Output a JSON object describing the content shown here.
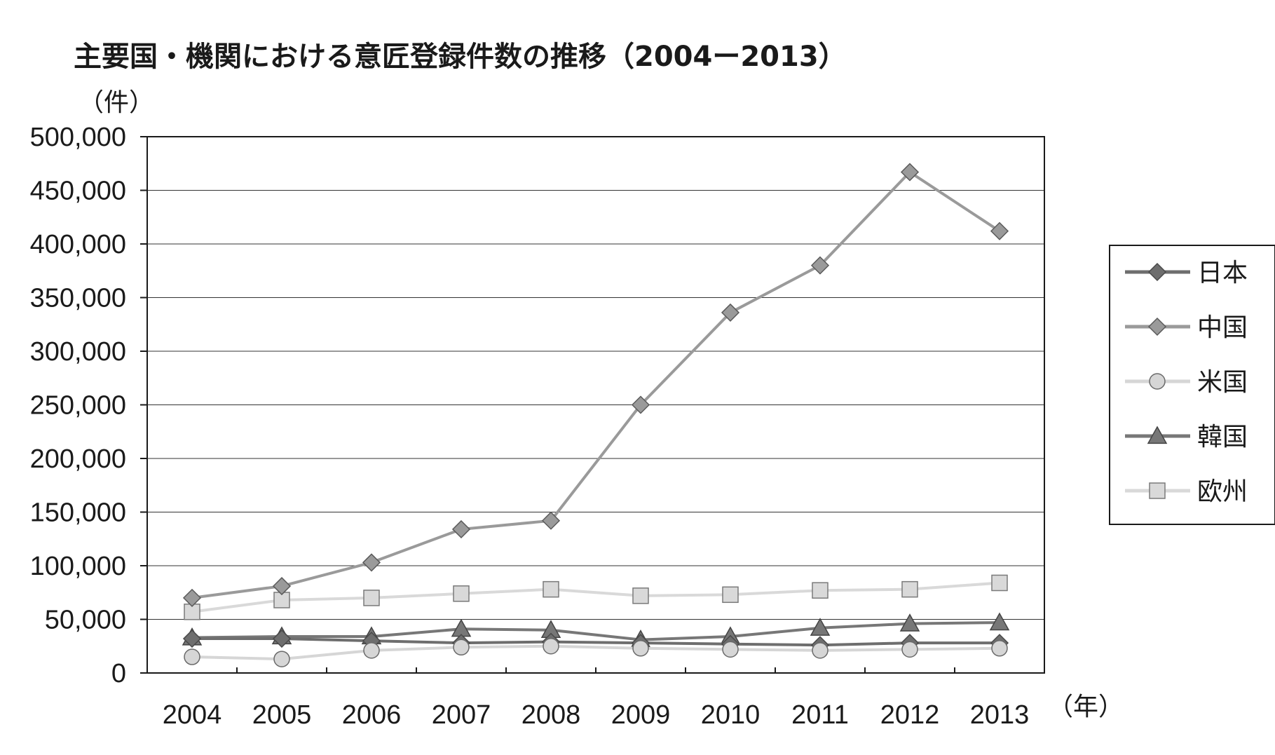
{
  "chart_data": {
    "type": "line",
    "title": "主要国・機関における意匠登録件数の推移（2004ー2013）",
    "ylabel": "（件）",
    "xlabel": "（年）",
    "ylim": [
      0,
      500000
    ],
    "yticks": [
      "500,000",
      "450,000",
      "400,000",
      "350,000",
      "300,000",
      "250,000",
      "200,000",
      "150,000",
      "100,000",
      "50,000",
      "0"
    ],
    "ytick_values": [
      500000,
      450000,
      400000,
      350000,
      300000,
      250000,
      200000,
      150000,
      100000,
      50000,
      0
    ],
    "categories": [
      "2004",
      "2005",
      "2006",
      "2007",
      "2008",
      "2009",
      "2010",
      "2011",
      "2012",
      "2013"
    ],
    "grid": "horizontal",
    "legend_position": "right",
    "series": [
      {
        "name": "日本",
        "marker": "diamond",
        "color": "#6e6e6e",
        "stroke_color": "#4a4a4a",
        "values": [
          32000,
          32000,
          30000,
          28000,
          29000,
          28000,
          27000,
          26000,
          28000,
          28000
        ]
      },
      {
        "name": "中国",
        "marker": "diamond",
        "color": "#9a9a9a",
        "stroke_color": "#5a5a5a",
        "values": [
          70000,
          81000,
          103000,
          134000,
          142000,
          250000,
          336000,
          380000,
          467000,
          412000
        ]
      },
      {
        "name": "米国",
        "marker": "circle",
        "color": "#d6d6d6",
        "stroke_color": "#6a6a6a",
        "values": [
          15000,
          13000,
          21000,
          24000,
          25000,
          23000,
          22000,
          21000,
          22000,
          23000
        ]
      },
      {
        "name": "韓国",
        "marker": "triangle",
        "color": "#777777",
        "stroke_color": "#444444",
        "values": [
          33000,
          34000,
          34000,
          41000,
          40000,
          31000,
          34000,
          42000,
          46000,
          47000
        ]
      },
      {
        "name": "欧州",
        "marker": "square",
        "color": "#d9d9d9",
        "stroke_color": "#7a7a7a",
        "values": [
          57000,
          68000,
          70000,
          74000,
          78000,
          72000,
          73000,
          77000,
          78000,
          84000
        ]
      }
    ]
  }
}
